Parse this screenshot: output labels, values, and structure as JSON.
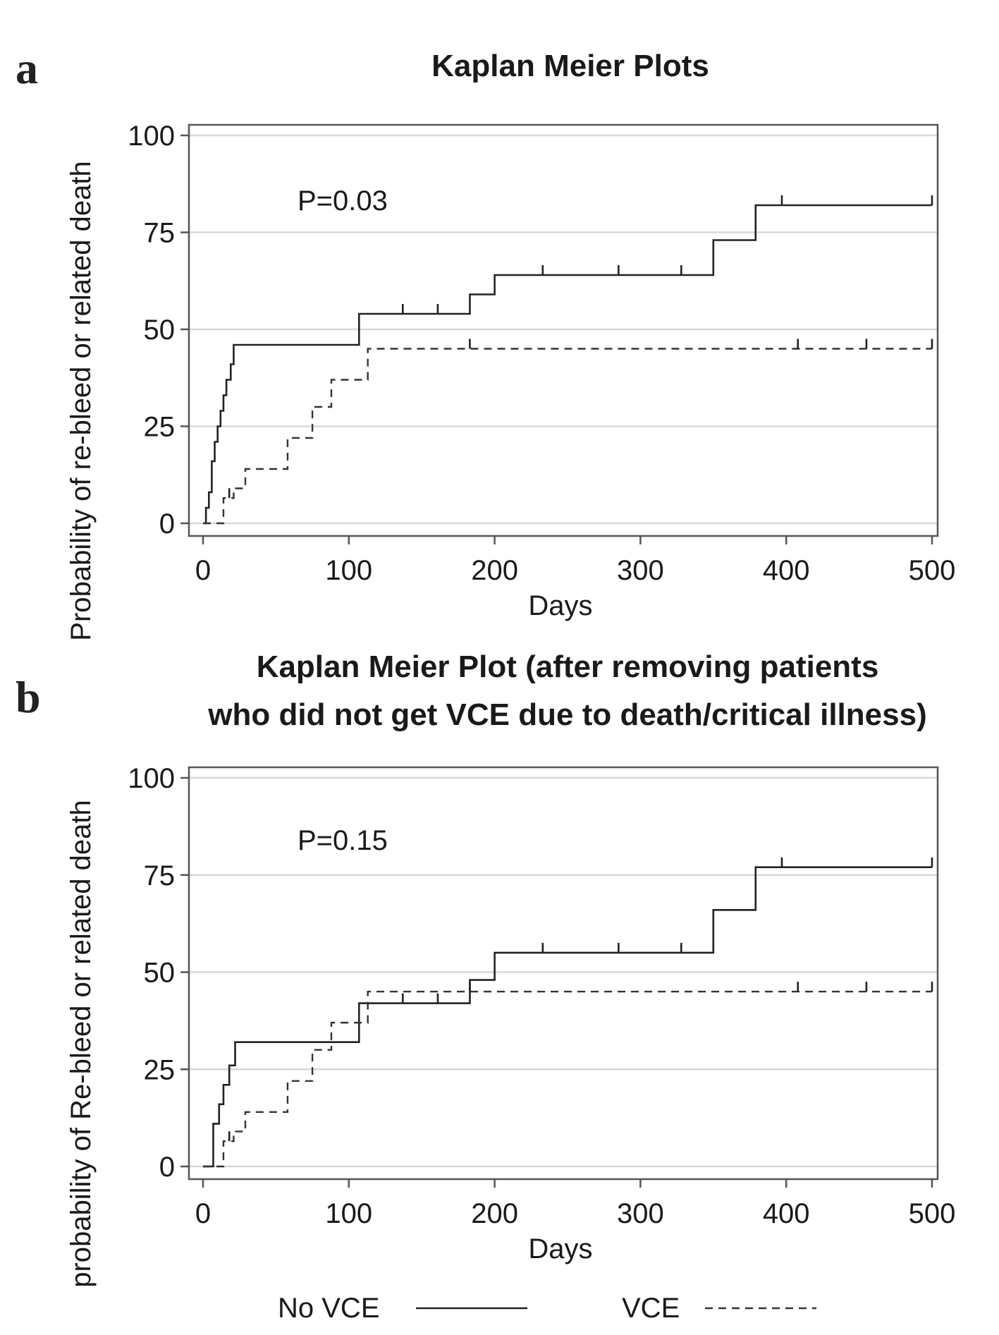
{
  "legend": {
    "no_vce": "No VCE",
    "vce": "VCE"
  },
  "chart_data": [
    {
      "type": "line",
      "panel_label": "a",
      "title": "Kaplan Meier Plots",
      "title_lines": [
        "Kaplan Meier Plots"
      ],
      "xlabel": "Days",
      "ylabel": "Probability of re-bleed or related death",
      "xlim": [
        0,
        500
      ],
      "ylim": [
        0,
        100
      ],
      "x_ticks": [
        0,
        100,
        200,
        300,
        400,
        500
      ],
      "y_ticks": [
        0,
        25,
        50,
        75,
        100
      ],
      "grid": "horizontal",
      "annotation": "P=0.03",
      "step": true,
      "series": [
        {
          "name": "No VCE",
          "line_style": "solid",
          "x": [
            0,
            2,
            4,
            6,
            8,
            10,
            12,
            14,
            16,
            19,
            21,
            107,
            183,
            200,
            350,
            379,
            500
          ],
          "y": [
            0,
            4,
            8,
            16,
            21,
            25,
            29,
            33,
            37,
            41,
            46,
            54,
            59,
            64,
            73,
            82,
            82
          ],
          "censored_x": [
            137,
            161,
            233,
            285,
            328,
            397,
            500
          ]
        },
        {
          "name": "VCE",
          "line_style": "dashed",
          "x": [
            0,
            14,
            21,
            29,
            58,
            75,
            88,
            113,
            500
          ],
          "y": [
            0,
            6.5,
            9,
            14,
            22,
            30,
            37,
            45,
            45
          ],
          "censored_x": [
            18,
            183,
            408,
            455,
            500
          ]
        }
      ]
    },
    {
      "type": "line",
      "panel_label": "b",
      "title": "Kaplan Meier Plot (after removing patients who did not get VCE due to death/critical illness)",
      "title_lines": [
        "Kaplan Meier Plot (after removing patients",
        "who did not get VCE due to death/critical illness)"
      ],
      "xlabel": "Days",
      "ylabel": "probability of Re-bleed or related death",
      "xlim": [
        0,
        500
      ],
      "ylim": [
        0,
        100
      ],
      "x_ticks": [
        0,
        100,
        200,
        300,
        400,
        500
      ],
      "y_ticks": [
        0,
        25,
        50,
        75,
        100
      ],
      "grid": "horizontal",
      "annotation": "P=0.15",
      "step": true,
      "series": [
        {
          "name": "No VCE",
          "line_style": "solid",
          "x": [
            0,
            7,
            11,
            14,
            18,
            22,
            107,
            183,
            200,
            350,
            379,
            500
          ],
          "y": [
            0,
            11,
            16,
            21,
            26,
            32,
            42,
            48,
            55,
            66,
            77,
            77
          ],
          "censored_x": [
            137,
            161,
            233,
            285,
            328,
            397,
            500
          ]
        },
        {
          "name": "VCE",
          "line_style": "dashed",
          "x": [
            0,
            14,
            21,
            29,
            58,
            75,
            88,
            113,
            500
          ],
          "y": [
            0,
            6.5,
            9,
            14,
            22,
            30,
            37,
            45,
            45
          ],
          "censored_x": [
            18,
            183,
            408,
            455,
            500
          ]
        }
      ]
    }
  ]
}
